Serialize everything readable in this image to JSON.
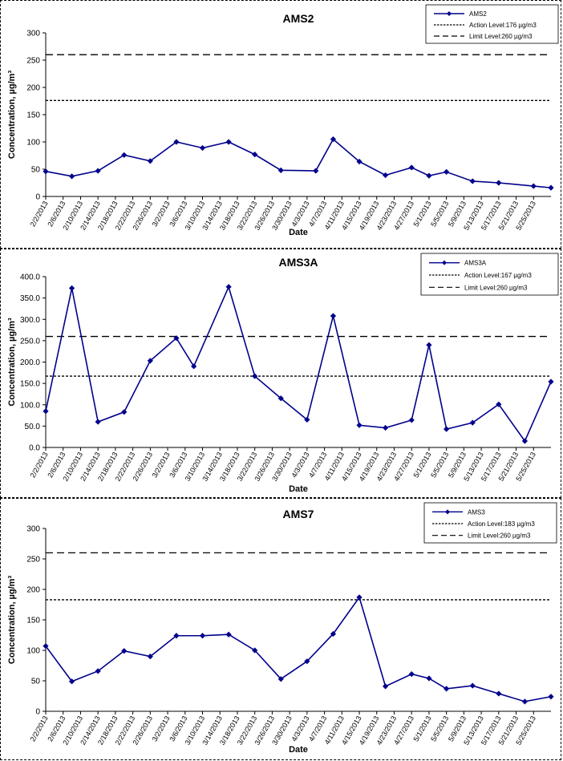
{
  "chart_data": [
    {
      "type": "line",
      "title": "AMS2",
      "xlabel": "Date",
      "ylabel": "Concentration, µg/m³",
      "ylim": [
        0,
        300
      ],
      "yticks": [
        "0",
        "50",
        "100",
        "150",
        "200",
        "250",
        "300"
      ],
      "x": [
        "2/2/2013",
        "2/6/2013",
        "2/10/2013",
        "2/14/2013",
        "2/18/2013",
        "2/22/2013",
        "2/26/2013",
        "3/2/2013",
        "3/6/2013",
        "3/10/2013",
        "3/14/2013",
        "3/18/2013",
        "3/22/2013",
        "3/26/2013",
        "3/30/2013",
        "4/3/2013",
        "4/7/2013",
        "4/11/2013",
        "4/15/2013",
        "4/19/2013",
        "4/23/2013",
        "4/27/2013",
        "5/1/2013",
        "5/5/2013",
        "5/9/2013",
        "5/13/2013",
        "5/17/2013",
        "5/21/2013",
        "5/25/2013"
      ],
      "series": [
        {
          "name": "AMS2",
          "color": "#00008B",
          "points": [
            [
              "2/2/2013",
              46
            ],
            [
              "2/8/2013",
              37
            ],
            [
              "2/14/2013",
              47
            ],
            [
              "2/20/2013",
              76
            ],
            [
              "2/26/2013",
              65
            ],
            [
              "3/4/2013",
              100
            ],
            [
              "3/10/2013",
              89
            ],
            [
              "3/16/2013",
              100
            ],
            [
              "3/22/2013",
              77
            ],
            [
              "3/28/2013",
              48
            ],
            [
              "4/5/2013",
              47
            ],
            [
              "4/9/2013",
              105
            ],
            [
              "4/15/2013",
              64
            ],
            [
              "4/21/2013",
              39
            ],
            [
              "4/27/2013",
              53
            ],
            [
              "5/1/2013",
              38
            ],
            [
              "5/5/2013",
              45
            ],
            [
              "5/11/2013",
              28
            ],
            [
              "5/17/2013",
              25
            ],
            [
              "5/25/2013",
              19
            ],
            [
              "5/29/2013",
              16
            ]
          ]
        }
      ],
      "lines": [
        {
          "name": "Action Level:176 µg/m3",
          "value": 176,
          "style": "short-dash"
        },
        {
          "name": "Limit Level:260  µg/m3",
          "value": 260,
          "style": "long-dash"
        }
      ],
      "legend_position": "top-right",
      "grid": false
    },
    {
      "type": "line",
      "title": "AMS3A",
      "xlabel": "Date",
      "ylabel": "Concentration, µg/m³",
      "ylim": [
        0,
        400
      ],
      "yticks": [
        "0.0",
        "50.0",
        "100.0",
        "150.0",
        "200.0",
        "250.0",
        "300.0",
        "350.0",
        "400.0"
      ],
      "x": [
        "2/2/2013",
        "2/6/2013",
        "2/10/2013",
        "2/14/2013",
        "2/18/2013",
        "2/22/2013",
        "2/26/2013",
        "3/2/2013",
        "3/6/2013",
        "3/10/2013",
        "3/14/2013",
        "3/18/2013",
        "3/22/2013",
        "3/26/2013",
        "3/30/2013",
        "4/3/2013",
        "4/7/2013",
        "4/11/2013",
        "4/15/2013",
        "4/19/2013",
        "4/23/2013",
        "4/27/2013",
        "5/1/2013",
        "5/5/2013",
        "5/9/2013",
        "5/13/2013",
        "5/17/2013",
        "5/21/2013",
        "5/25/2013"
      ],
      "series": [
        {
          "name": "AMS3A",
          "color": "#00008B",
          "points": [
            [
              "2/2/2013",
              85
            ],
            [
              "2/8/2013",
              373
            ],
            [
              "2/14/2013",
              60
            ],
            [
              "2/20/2013",
              83
            ],
            [
              "2/26/2013",
              203
            ],
            [
              "3/4/2013",
              256
            ],
            [
              "3/8/2013",
              190
            ],
            [
              "3/16/2013",
              376
            ],
            [
              "3/22/2013",
              167
            ],
            [
              "3/28/2013",
              115
            ],
            [
              "4/3/2013",
              65
            ],
            [
              "4/9/2013",
              308
            ],
            [
              "4/15/2013",
              52
            ],
            [
              "4/21/2013",
              46
            ],
            [
              "4/27/2013",
              64
            ],
            [
              "5/1/2013",
              240
            ],
            [
              "5/5/2013",
              43
            ],
            [
              "5/11/2013",
              58
            ],
            [
              "5/17/2013",
              101
            ],
            [
              "5/23/2013",
              15
            ],
            [
              "5/29/2013",
              154
            ]
          ]
        }
      ],
      "lines": [
        {
          "name": "Action Level:167 µg/m3",
          "value": 167,
          "style": "short-dash"
        },
        {
          "name": "Limit Level:260  µg/m3",
          "value": 260,
          "style": "long-dash"
        }
      ],
      "legend_position": "top-right",
      "grid": false
    },
    {
      "type": "line",
      "title": "AMS7",
      "xlabel": "Date",
      "ylabel": "Concentration, µg/m³",
      "ylim": [
        0,
        300
      ],
      "yticks": [
        "0",
        "50",
        "100",
        "150",
        "200",
        "250",
        "300"
      ],
      "x": [
        "2/2/2013",
        "2/6/2013",
        "2/10/2013",
        "2/14/2013",
        "2/18/2013",
        "2/22/2013",
        "2/26/2013",
        "3/2/2013",
        "3/6/2013",
        "3/10/2013",
        "3/14/2013",
        "3/18/2013",
        "3/22/2013",
        "3/26/2013",
        "3/30/2013",
        "4/3/2013",
        "4/7/2013",
        "4/11/2013",
        "4/15/2013",
        "4/19/2013",
        "4/23/2013",
        "4/27/2013",
        "5/1/2013",
        "5/5/2013",
        "5/9/2013",
        "5/13/2013",
        "5/17/2013",
        "5/21/2013",
        "5/25/2013"
      ],
      "series": [
        {
          "name": "AMS3",
          "color": "#00008B",
          "points": [
            [
              "2/2/2013",
              107
            ],
            [
              "2/8/2013",
              49
            ],
            [
              "2/14/2013",
              66
            ],
            [
              "2/20/2013",
              99
            ],
            [
              "2/26/2013",
              90
            ],
            [
              "3/4/2013",
              124
            ],
            [
              "3/10/2013",
              124
            ],
            [
              "3/16/2013",
              126
            ],
            [
              "3/22/2013",
              100
            ],
            [
              "3/28/2013",
              53
            ],
            [
              "4/3/2013",
              82
            ],
            [
              "4/9/2013",
              127
            ],
            [
              "4/15/2013",
              187
            ],
            [
              "4/21/2013",
              41
            ],
            [
              "4/27/2013",
              61
            ],
            [
              "5/1/2013",
              54
            ],
            [
              "5/5/2013",
              37
            ],
            [
              "5/11/2013",
              42
            ],
            [
              "5/17/2013",
              29
            ],
            [
              "5/23/2013",
              16
            ],
            [
              "5/29/2013",
              24
            ]
          ]
        }
      ],
      "lines": [
        {
          "name": "Action Level:183 µg/m3",
          "value": 183,
          "style": "short-dash"
        },
        {
          "name": "Limit Level:260  µg/m3",
          "value": 260,
          "style": "long-dash"
        }
      ],
      "legend_position": "top-right",
      "grid": false
    }
  ]
}
